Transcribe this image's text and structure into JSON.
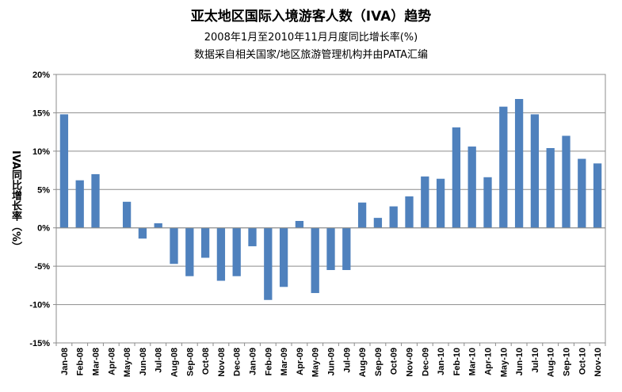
{
  "chart_data": {
    "type": "bar",
    "title": "亚太地区国际入境游客人数（IVA）趋势",
    "subtitle": "2008年1月至2010年11月月度同比增长率(%)",
    "source": "数据采自相关国家/地区旅游管理机构并由PATA汇编",
    "ylabel": "IVA同比增长率（%）",
    "ylim": [
      -15,
      20
    ],
    "yticks": [
      "20%",
      "15%",
      "10%",
      "5%",
      "0%",
      "-5%",
      "-10%",
      "-15%"
    ],
    "ytick_values": [
      20,
      15,
      10,
      5,
      0,
      -5,
      -10,
      -15
    ],
    "grid": true,
    "legend": "none",
    "bar_color": "#4F81BD",
    "categories": [
      "Jan-08",
      "Feb-08",
      "Mar-08",
      "Apr-08",
      "May-08",
      "Jun-08",
      "Jul-08",
      "Aug-08",
      "Sep-08",
      "Oct-08",
      "Nov-08",
      "Dec-08",
      "Jan-09",
      "Feb-09",
      "Mar-09",
      "Apr-09",
      "May-09",
      "Jun-09",
      "Jul-09",
      "Aug-09",
      "Sep-09",
      "Oct-09",
      "Nov-09",
      "Dec-09",
      "Jan-10",
      "Feb-10",
      "Mar-10",
      "Apr-10",
      "May-10",
      "Jun-10",
      "Jul-10",
      "Aug-10",
      "Sep-10",
      "Oct-10",
      "Nov-10"
    ],
    "values": [
      14.8,
      6.2,
      7.0,
      0.0,
      3.4,
      -1.4,
      0.6,
      -4.7,
      -6.3,
      -3.9,
      -6.9,
      -6.3,
      -2.4,
      -9.4,
      -7.7,
      0.9,
      -8.5,
      -5.5,
      -5.5,
      3.3,
      1.3,
      2.8,
      4.1,
      6.7,
      6.4,
      13.1,
      10.6,
      6.6,
      15.8,
      16.8,
      14.8,
      10.4,
      12.0,
      9.0,
      8.4
    ]
  }
}
